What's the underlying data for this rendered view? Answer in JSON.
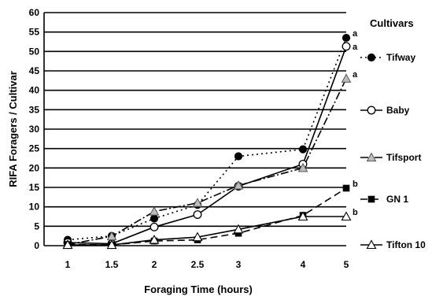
{
  "chart_data": {
    "type": "line",
    "x_label": "Foraging Time (hours)",
    "y_label": "RIFA Foragers / Cultivar",
    "x_categories": [
      "1",
      "1.5",
      "2",
      "2.5",
      "3",
      "4",
      "5"
    ],
    "y_ticks": [
      "0",
      "5",
      "10",
      "15",
      "20",
      "25",
      "30",
      "35",
      "40",
      "45",
      "50",
      "55",
      "60"
    ],
    "ylim": [
      0,
      60
    ],
    "grid": "horizontal",
    "legend_title": "Cultivars",
    "legend_position": "right",
    "series": [
      {
        "name": "Tifway",
        "marker": "circle-filled",
        "line_style": "dotted",
        "values": [
          1.5,
          2.5,
          7,
          10.5,
          23,
          24.8,
          53.5
        ],
        "end_letter": "a"
      },
      {
        "name": "Baby",
        "marker": "circle-open",
        "line_style": "solid",
        "values": [
          0.8,
          0.5,
          4.8,
          8,
          15.3,
          21,
          51.3
        ],
        "end_letter": "a"
      },
      {
        "name": "Tifsport",
        "marker": "triangle-gray",
        "line_style": "dashdot",
        "values": [
          0.3,
          2.4,
          8.8,
          11,
          15.5,
          20,
          43
        ],
        "end_letter": "a"
      },
      {
        "name": "GN 1",
        "marker": "square-filled",
        "line_style": "dashed",
        "values": [
          0.3,
          0.2,
          1.2,
          1.5,
          3.2,
          7.8,
          14.8
        ],
        "end_letter": "b"
      },
      {
        "name": "Tifton 10",
        "marker": "triangle-open",
        "line_style": "solid",
        "values": [
          0.2,
          0.2,
          1.5,
          2.2,
          4.2,
          7.5,
          7.5
        ],
        "end_letter": "b"
      }
    ]
  }
}
